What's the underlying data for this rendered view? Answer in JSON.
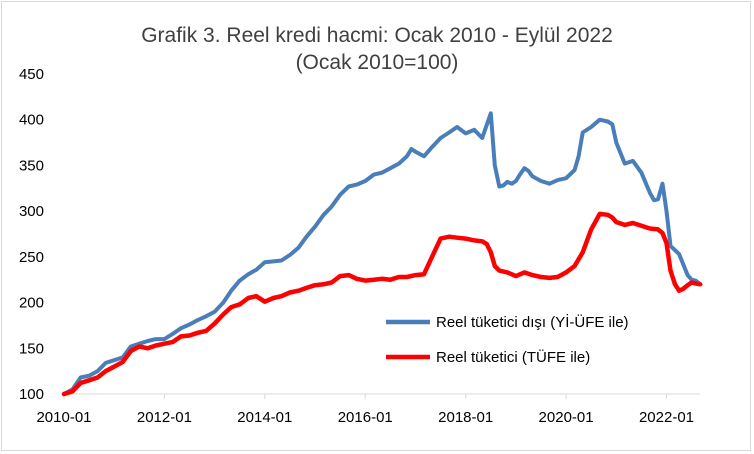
{
  "chart_data": {
    "type": "line",
    "title": "Grafik 3. Reel kredi hacmi: Ocak 2010 - Eylül 2022",
    "subtitle": "(Ocak 2010=100)",
    "xlabel": "",
    "ylabel": "",
    "ylim": [
      100,
      450
    ],
    "yticks": [
      "100",
      "150",
      "200",
      "250",
      "300",
      "350",
      "400",
      "450"
    ],
    "xticks": [
      "2010-01",
      "2012-01",
      "2014-01",
      "2016-01",
      "2018-01",
      "2020-01",
      "2022-01"
    ],
    "xrange": [
      2010.0,
      2022.667
    ],
    "grid": "none",
    "legend_position": "center-right",
    "series": [
      {
        "name": "Reel tüketici dışı (Yİ-ÜFE ile)",
        "color": "#4a7ebb",
        "points": [
          [
            2010.0,
            100
          ],
          [
            2010.17,
            105
          ],
          [
            2010.33,
            118
          ],
          [
            2010.5,
            120
          ],
          [
            2010.67,
            125
          ],
          [
            2010.83,
            134
          ],
          [
            2011.0,
            137
          ],
          [
            2011.17,
            140
          ],
          [
            2011.33,
            152
          ],
          [
            2011.5,
            155
          ],
          [
            2011.67,
            158
          ],
          [
            2011.83,
            160
          ],
          [
            2012.0,
            160
          ],
          [
            2012.17,
            166
          ],
          [
            2012.33,
            172
          ],
          [
            2012.5,
            176
          ],
          [
            2012.67,
            181
          ],
          [
            2012.83,
            185
          ],
          [
            2013.0,
            190
          ],
          [
            2013.17,
            200
          ],
          [
            2013.33,
            213
          ],
          [
            2013.5,
            224
          ],
          [
            2013.67,
            231
          ],
          [
            2013.83,
            236
          ],
          [
            2014.0,
            244
          ],
          [
            2014.17,
            245
          ],
          [
            2014.33,
            246
          ],
          [
            2014.5,
            252
          ],
          [
            2014.67,
            260
          ],
          [
            2014.83,
            272
          ],
          [
            2015.0,
            283
          ],
          [
            2015.17,
            296
          ],
          [
            2015.33,
            305
          ],
          [
            2015.5,
            318
          ],
          [
            2015.67,
            327
          ],
          [
            2015.83,
            329
          ],
          [
            2016.0,
            333
          ],
          [
            2016.17,
            340
          ],
          [
            2016.33,
            342
          ],
          [
            2016.5,
            347
          ],
          [
            2016.67,
            352
          ],
          [
            2016.83,
            360
          ],
          [
            2016.92,
            368
          ],
          [
            2017.0,
            365
          ],
          [
            2017.17,
            360
          ],
          [
            2017.33,
            370
          ],
          [
            2017.5,
            380
          ],
          [
            2017.67,
            386
          ],
          [
            2017.83,
            392
          ],
          [
            2018.0,
            385
          ],
          [
            2018.17,
            389
          ],
          [
            2018.33,
            380
          ],
          [
            2018.5,
            407
          ],
          [
            2018.58,
            350
          ],
          [
            2018.67,
            327
          ],
          [
            2018.75,
            328
          ],
          [
            2018.83,
            332
          ],
          [
            2018.92,
            330
          ],
          [
            2019.0,
            333
          ],
          [
            2019.08,
            340
          ],
          [
            2019.17,
            347
          ],
          [
            2019.25,
            344
          ],
          [
            2019.33,
            338
          ],
          [
            2019.5,
            333
          ],
          [
            2019.67,
            330
          ],
          [
            2019.83,
            334
          ],
          [
            2020.0,
            336
          ],
          [
            2020.17,
            345
          ],
          [
            2020.25,
            360
          ],
          [
            2020.33,
            386
          ],
          [
            2020.5,
            392
          ],
          [
            2020.67,
            400
          ],
          [
            2020.83,
            398
          ],
          [
            2020.92,
            395
          ],
          [
            2021.0,
            375
          ],
          [
            2021.17,
            352
          ],
          [
            2021.33,
            355
          ],
          [
            2021.5,
            342
          ],
          [
            2021.67,
            320
          ],
          [
            2021.75,
            312
          ],
          [
            2021.83,
            313
          ],
          [
            2021.92,
            330
          ],
          [
            2022.0,
            300
          ],
          [
            2022.08,
            262
          ],
          [
            2022.25,
            253
          ],
          [
            2022.42,
            230
          ],
          [
            2022.5,
            225
          ],
          [
            2022.58,
            224
          ],
          [
            2022.67,
            220
          ]
        ]
      },
      {
        "name": "Reel tüketici (TÜFE ile)",
        "color": "#ff0000",
        "points": [
          [
            2010.0,
            100
          ],
          [
            2010.17,
            103
          ],
          [
            2010.33,
            112
          ],
          [
            2010.5,
            115
          ],
          [
            2010.67,
            118
          ],
          [
            2010.83,
            125
          ],
          [
            2011.0,
            130
          ],
          [
            2011.17,
            135
          ],
          [
            2011.33,
            147
          ],
          [
            2011.5,
            152
          ],
          [
            2011.67,
            150
          ],
          [
            2011.83,
            153
          ],
          [
            2012.0,
            155
          ],
          [
            2012.17,
            157
          ],
          [
            2012.33,
            163
          ],
          [
            2012.5,
            164
          ],
          [
            2012.67,
            167
          ],
          [
            2012.83,
            169
          ],
          [
            2013.0,
            177
          ],
          [
            2013.17,
            187
          ],
          [
            2013.33,
            195
          ],
          [
            2013.5,
            198
          ],
          [
            2013.67,
            205
          ],
          [
            2013.83,
            207
          ],
          [
            2014.0,
            201
          ],
          [
            2014.17,
            205
          ],
          [
            2014.33,
            207
          ],
          [
            2014.5,
            211
          ],
          [
            2014.67,
            213
          ],
          [
            2014.83,
            216
          ],
          [
            2015.0,
            219
          ],
          [
            2015.17,
            220
          ],
          [
            2015.33,
            222
          ],
          [
            2015.5,
            229
          ],
          [
            2015.67,
            230
          ],
          [
            2015.83,
            226
          ],
          [
            2016.0,
            224
          ],
          [
            2016.17,
            225
          ],
          [
            2016.33,
            226
          ],
          [
            2016.5,
            225
          ],
          [
            2016.67,
            228
          ],
          [
            2016.83,
            228
          ],
          [
            2017.0,
            230
          ],
          [
            2017.17,
            231
          ],
          [
            2017.33,
            250
          ],
          [
            2017.5,
            270
          ],
          [
            2017.67,
            272
          ],
          [
            2017.83,
            271
          ],
          [
            2018.0,
            270
          ],
          [
            2018.17,
            268
          ],
          [
            2018.33,
            267
          ],
          [
            2018.42,
            264
          ],
          [
            2018.5,
            255
          ],
          [
            2018.58,
            240
          ],
          [
            2018.67,
            235
          ],
          [
            2018.83,
            233
          ],
          [
            2019.0,
            229
          ],
          [
            2019.17,
            233
          ],
          [
            2019.33,
            230
          ],
          [
            2019.5,
            228
          ],
          [
            2019.67,
            227
          ],
          [
            2019.83,
            228
          ],
          [
            2020.0,
            233
          ],
          [
            2020.17,
            240
          ],
          [
            2020.33,
            255
          ],
          [
            2020.5,
            280
          ],
          [
            2020.67,
            297
          ],
          [
            2020.83,
            296
          ],
          [
            2020.92,
            293
          ],
          [
            2021.0,
            288
          ],
          [
            2021.17,
            285
          ],
          [
            2021.33,
            287
          ],
          [
            2021.5,
            284
          ],
          [
            2021.67,
            281
          ],
          [
            2021.83,
            280
          ],
          [
            2021.92,
            276
          ],
          [
            2022.0,
            265
          ],
          [
            2022.08,
            235
          ],
          [
            2022.17,
            220
          ],
          [
            2022.25,
            213
          ],
          [
            2022.33,
            215
          ],
          [
            2022.42,
            219
          ],
          [
            2022.5,
            222
          ],
          [
            2022.58,
            221
          ],
          [
            2022.67,
            220
          ]
        ]
      }
    ]
  }
}
